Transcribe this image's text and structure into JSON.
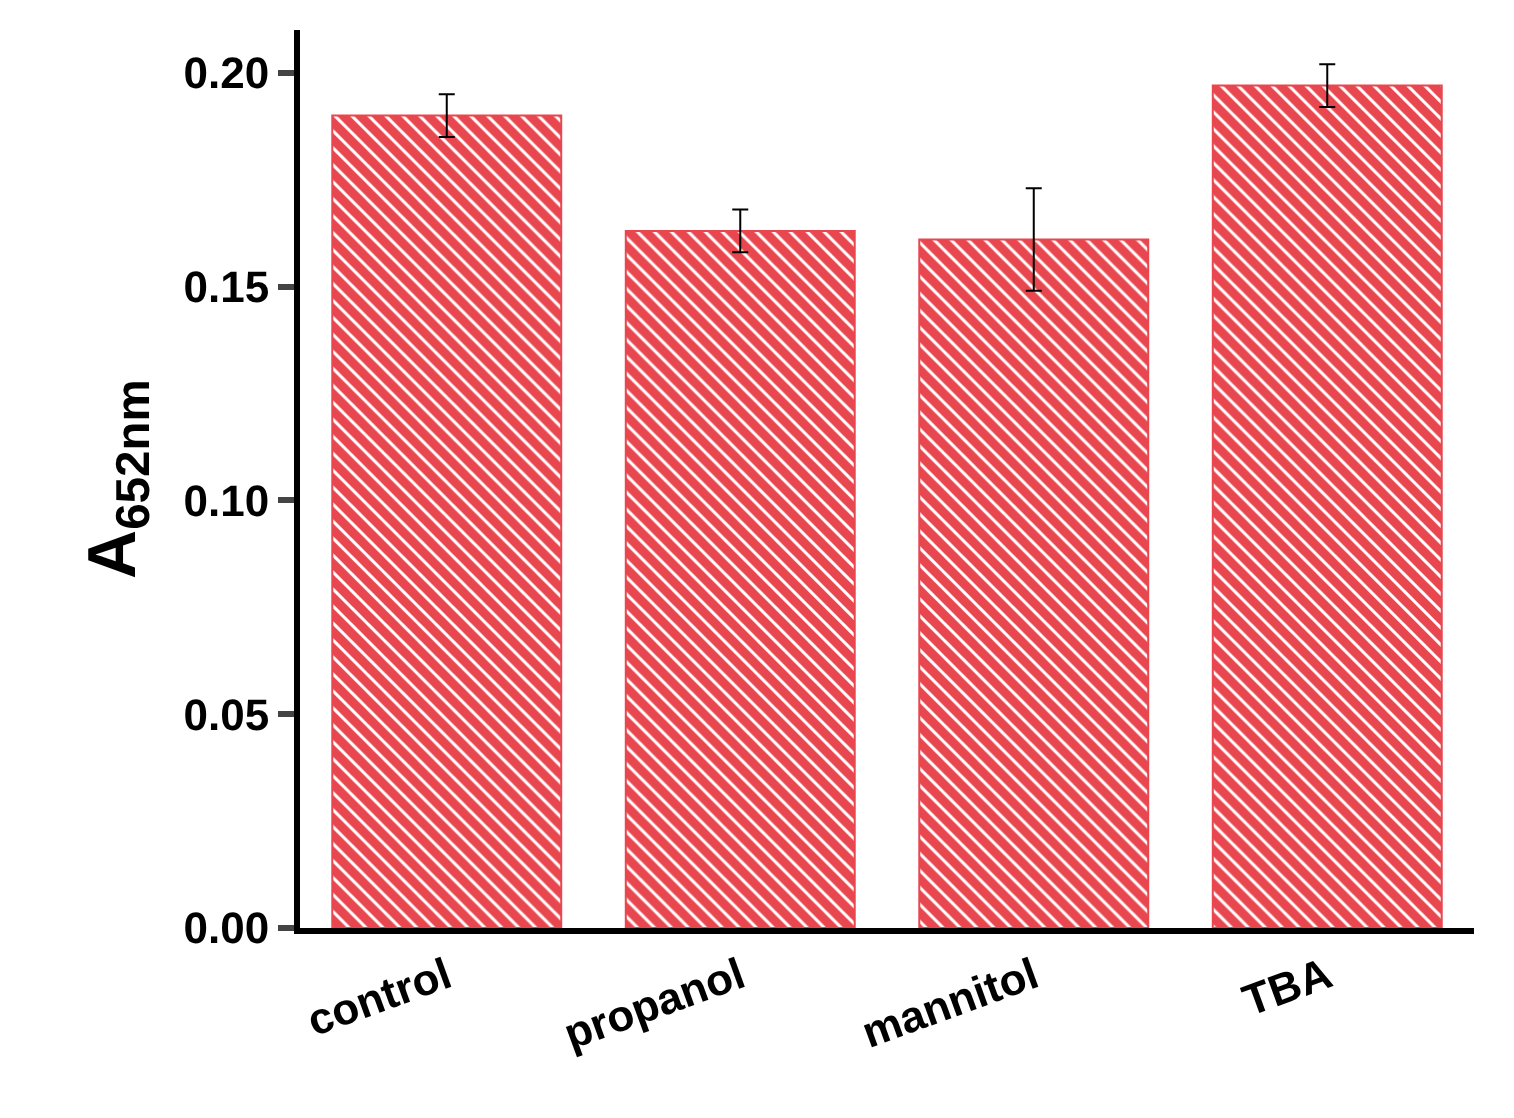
{
  "chart_data": {
    "type": "bar",
    "ylabel": "A$_{652nm}$",
    "categories": [
      "control",
      "propanol",
      "mannitol",
      "TBA"
    ],
    "values": [
      0.19,
      0.163,
      0.161,
      0.197
    ],
    "errors": [
      0.005,
      0.005,
      0.012,
      0.005
    ],
    "color": "#e8474f",
    "ylim": [
      0,
      0.21
    ],
    "yticks": [
      {
        "value": 0,
        "label": "0.00"
      },
      {
        "value": 0.05,
        "label": "0.05"
      },
      {
        "value": 0.1,
        "label": "0.10"
      },
      {
        "value": 0.15,
        "label": "0.15"
      },
      {
        "value": 0.2,
        "label": "0.20"
      }
    ],
    "grid": false,
    "legend": false
  }
}
